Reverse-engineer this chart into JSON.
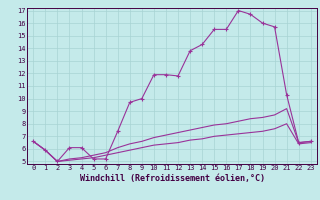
{
  "xlabel": "Windchill (Refroidissement éolien,°C)",
  "xlim": [
    -0.5,
    23.5
  ],
  "ylim": [
    4.8,
    17.2
  ],
  "xticks": [
    0,
    1,
    2,
    3,
    4,
    5,
    6,
    7,
    8,
    9,
    10,
    11,
    12,
    13,
    14,
    15,
    16,
    17,
    18,
    19,
    20,
    21,
    22,
    23
  ],
  "yticks": [
    5,
    6,
    7,
    8,
    9,
    10,
    11,
    12,
    13,
    14,
    15,
    16,
    17
  ],
  "bg_color": "#c4eaea",
  "grid_color": "#a8d4d4",
  "line_color": "#993399",
  "line1_x": [
    0,
    1,
    2,
    3,
    4,
    5,
    6,
    7,
    8,
    9,
    10,
    11,
    12,
    13,
    14,
    15,
    16,
    17,
    18,
    19,
    20,
    21,
    22,
    23
  ],
  "line1_y": [
    6.6,
    5.9,
    5.0,
    6.1,
    6.1,
    5.2,
    5.2,
    7.4,
    9.7,
    10.0,
    11.9,
    11.9,
    11.8,
    13.8,
    14.3,
    15.5,
    15.5,
    17.0,
    16.7,
    16.0,
    15.7,
    10.3,
    6.5,
    6.6
  ],
  "line2_x": [
    0,
    1,
    2,
    3,
    4,
    5,
    6,
    7,
    8,
    9,
    10,
    11,
    12,
    13,
    14,
    15,
    16,
    17,
    18,
    19,
    20,
    21,
    22,
    23
  ],
  "line2_y": [
    6.6,
    5.9,
    5.0,
    5.2,
    5.3,
    5.5,
    5.7,
    6.1,
    6.4,
    6.6,
    6.9,
    7.1,
    7.3,
    7.5,
    7.7,
    7.9,
    8.0,
    8.2,
    8.4,
    8.5,
    8.7,
    9.2,
    6.5,
    6.6
  ],
  "line3_x": [
    0,
    1,
    2,
    3,
    4,
    5,
    6,
    7,
    8,
    9,
    10,
    11,
    12,
    13,
    14,
    15,
    16,
    17,
    18,
    19,
    20,
    21,
    22,
    23
  ],
  "line3_y": [
    6.6,
    5.9,
    5.0,
    5.1,
    5.2,
    5.3,
    5.5,
    5.7,
    5.9,
    6.1,
    6.3,
    6.4,
    6.5,
    6.7,
    6.8,
    7.0,
    7.1,
    7.2,
    7.3,
    7.4,
    7.6,
    8.0,
    6.4,
    6.5
  ],
  "tick_fontsize": 5.0,
  "xlabel_fontsize": 6.0
}
